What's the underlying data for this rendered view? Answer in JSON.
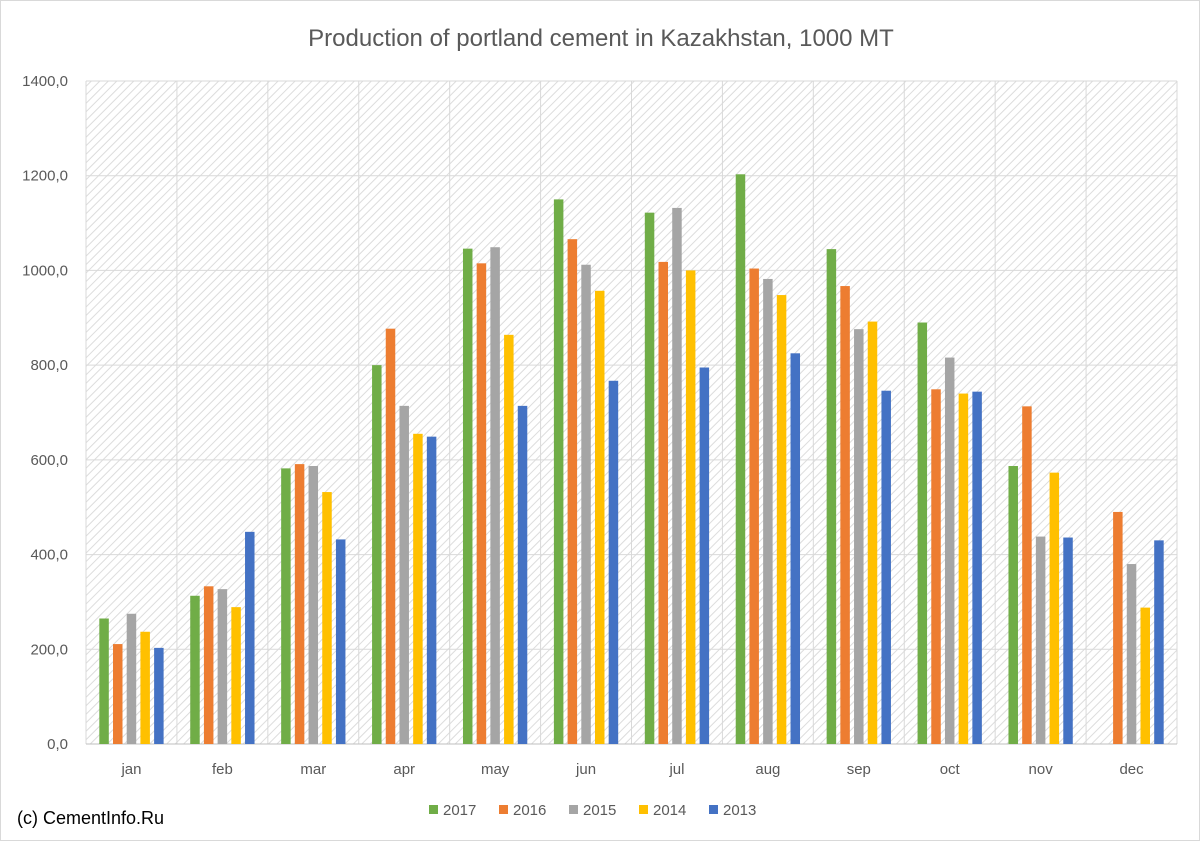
{
  "credit": "(c) CementInfo.Ru",
  "chart_data": {
    "type": "bar",
    "title": "Production of portland cement in Kazakhstan, 1000 MT",
    "xlabel": "",
    "ylabel": "",
    "categories": [
      "jan",
      "feb",
      "mar",
      "apr",
      "may",
      "jun",
      "jul",
      "aug",
      "sep",
      "oct",
      "nov",
      "dec"
    ],
    "ylim": [
      0,
      1400
    ],
    "yticks": [
      0,
      200,
      400,
      600,
      800,
      1000,
      1200,
      1400
    ],
    "ytick_labels": [
      "0,0",
      "200,0",
      "400,0",
      "600,0",
      "800,0",
      "1000,0",
      "1200,0",
      "1400,0"
    ],
    "grid": true,
    "legend_position": "bottom",
    "series": [
      {
        "name": "2017",
        "color": "#70ad47",
        "values": [
          265,
          313,
          582,
          800,
          1046,
          1150,
          1122,
          1203,
          1045,
          890,
          587,
          null
        ]
      },
      {
        "name": "2016",
        "color": "#ed7d31",
        "values": [
          211,
          333,
          591,
          877,
          1015,
          1066,
          1018,
          1004,
          967,
          749,
          713,
          490
        ]
      },
      {
        "name": "2015",
        "color": "#a5a5a5",
        "values": [
          275,
          327,
          587,
          714,
          1049,
          1012,
          1132,
          982,
          876,
          816,
          438,
          380
        ]
      },
      {
        "name": "2014",
        "color": "#ffc000",
        "values": [
          237,
          289,
          532,
          655,
          864,
          957,
          1000,
          948,
          892,
          740,
          573,
          288
        ]
      },
      {
        "name": "2013",
        "color": "#4472c4",
        "values": [
          203,
          448,
          432,
          649,
          714,
          767,
          795,
          825,
          746,
          744,
          436,
          430
        ]
      }
    ]
  }
}
